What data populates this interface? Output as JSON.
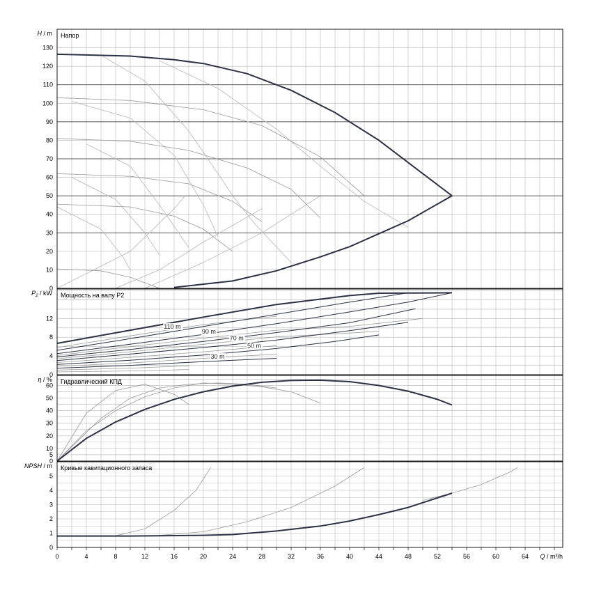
{
  "chart_data": {
    "type": "line",
    "x": {
      "label_symbol": "Q",
      "label_unit": "m³/h",
      "range": [
        0,
        68
      ],
      "ticks": [
        0,
        4,
        8,
        12,
        16,
        20,
        24,
        28,
        32,
        36,
        40,
        44,
        48,
        52,
        56,
        60,
        64
      ],
      "minor_step": 2
    },
    "panels": [
      {
        "id": "head",
        "ylabel_symbol": "H",
        "ylabel_unit": "m",
        "title": "Напор",
        "ylim": [
          0,
          140
        ],
        "ticks": [
          0,
          10,
          20,
          30,
          40,
          50,
          60,
          70,
          80,
          90,
          100,
          110,
          120,
          130
        ],
        "major_lines": [
          30,
          50,
          70,
          90,
          110
        ],
        "main_curve": [
          [
            0,
            126.5
          ],
          [
            10,
            125.5
          ],
          [
            16,
            123.5
          ],
          [
            20,
            121.5
          ],
          [
            26,
            116
          ],
          [
            32,
            107
          ],
          [
            38,
            95
          ],
          [
            44,
            80
          ],
          [
            50,
            62
          ],
          [
            54,
            50
          ]
        ],
        "envelope": [
          [
            16,
            0.5
          ],
          [
            24,
            4
          ],
          [
            30,
            9.5
          ],
          [
            36,
            17
          ],
          [
            40,
            22.5
          ],
          [
            44,
            29.5
          ],
          [
            48,
            36.5
          ],
          [
            54,
            50
          ]
        ],
        "speed_curves": [
          [
            [
              0,
              103
            ],
            [
              10,
              101.5
            ],
            [
              20,
              96.5
            ],
            [
              28,
              88
            ],
            [
              36,
              71
            ],
            [
              42,
              50
            ]
          ],
          [
            [
              0,
              81
            ],
            [
              10,
              79.5
            ],
            [
              18,
              74.5
            ],
            [
              26,
              65
            ],
            [
              32,
              53.5
            ],
            [
              36,
              38
            ]
          ],
          [
            [
              0,
              62
            ],
            [
              10,
              60.5
            ],
            [
              18,
              56.5
            ],
            [
              24,
              47
            ],
            [
              28,
              36
            ]
          ],
          [
            [
              0,
              45.5
            ],
            [
              10,
              44
            ],
            [
              16,
              39
            ],
            [
              20,
              32
            ],
            [
              24,
              20
            ]
          ],
          [
            [
              0,
              10.5
            ],
            [
              6,
              9.5
            ],
            [
              10,
              6
            ],
            [
              14,
              0
            ]
          ]
        ],
        "iso_curves": [
          [
            [
              0,
              0
            ],
            [
              10,
              20
            ],
            [
              16,
              43
            ],
            [
              17.5,
              50
            ]
          ],
          [
            [
              8,
              0
            ],
            [
              14,
              10
            ],
            [
              20,
              25
            ],
            [
              28,
              43
            ]
          ],
          [
            [
              12,
              0
            ],
            [
              20,
              14
            ],
            [
              28,
              30
            ],
            [
              36,
              50
            ]
          ],
          [
            [
              6,
              126
            ],
            [
              12,
              112
            ],
            [
              18,
              85
            ],
            [
              22,
              62
            ],
            [
              24,
              50
            ],
            [
              27,
              35
            ],
            [
              32,
              14
            ]
          ],
          [
            [
              14,
              123
            ],
            [
              22,
              108
            ],
            [
              30,
              86
            ],
            [
              36,
              66
            ],
            [
              42,
              47
            ],
            [
              48,
              33
            ]
          ],
          [
            [
              2,
              101
            ],
            [
              10,
              92
            ],
            [
              16,
              72
            ],
            [
              20,
              45
            ],
            [
              22,
              28
            ]
          ],
          [
            [
              4,
              78
            ],
            [
              10,
              66
            ],
            [
              14,
              45
            ],
            [
              18,
              22
            ]
          ],
          [
            [
              2,
              60
            ],
            [
              8,
              48
            ],
            [
              12,
              30
            ],
            [
              14,
              18
            ]
          ],
          [
            [
              0,
              44
            ],
            [
              6,
              32
            ],
            [
              9,
              17
            ],
            [
              10,
              10
            ]
          ]
        ]
      },
      {
        "id": "power",
        "ylabel_symbol": "P",
        "ylabel_sub": "2",
        "ylabel_unit": "kW",
        "title": "Мощность на валу P2",
        "ylim": [
          0,
          18.3
        ],
        "ticks": [
          0,
          4,
          8,
          12
        ],
        "main_curve": [
          [
            0,
            6.7
          ],
          [
            10,
            9.5
          ],
          [
            20,
            12.3
          ],
          [
            30,
            15
          ],
          [
            40,
            16.9
          ],
          [
            44,
            17.4
          ],
          [
            54,
            17.5
          ]
        ],
        "thin_curves": [
          [
            [
              0,
              5.2
            ],
            [
              10,
              7.7
            ],
            [
              20,
              10.3
            ],
            [
              30,
              12.9
            ],
            [
              40,
              15.5
            ],
            [
              48,
              17.5
            ]
          ],
          [
            [
              0,
              4.5
            ],
            [
              10,
              6.5
            ],
            [
              20,
              8.6
            ],
            [
              30,
              10.9
            ],
            [
              40,
              13.4
            ],
            [
              48,
              15.5
            ],
            [
              54,
              17.5
            ]
          ],
          [
            [
              0,
              3.8
            ],
            [
              10,
              5.4
            ],
            [
              20,
              7.1
            ],
            [
              30,
              9
            ],
            [
              40,
              11.1
            ],
            [
              49,
              14.1
            ]
          ],
          [
            [
              0,
              3
            ],
            [
              10,
              4.4
            ],
            [
              20,
              5.8
            ],
            [
              30,
              7.4
            ],
            [
              40,
              9.4
            ],
            [
              48,
              11.2
            ]
          ],
          [
            [
              0,
              2.2
            ],
            [
              10,
              3.1
            ],
            [
              20,
              4.2
            ],
            [
              30,
              5.6
            ],
            [
              38,
              7.1
            ],
            [
              44,
              8.5
            ]
          ],
          [
            [
              0,
              1.4
            ],
            [
              10,
              2
            ],
            [
              20,
              2.8
            ],
            [
              30,
              3.5
            ]
          ]
        ],
        "bg_curves": [
          [
            [
              0,
              5.8
            ],
            [
              10,
              8.3
            ],
            [
              20,
              10.7
            ],
            [
              30,
              12.5
            ]
          ],
          [
            [
              0,
              4.1
            ],
            [
              10,
              6
            ],
            [
              20,
              7.8
            ],
            [
              30,
              9.5
            ],
            [
              40,
              10.3
            ],
            [
              50,
              12
            ]
          ],
          [
            [
              0,
              3.4
            ],
            [
              10,
              4.9
            ],
            [
              20,
              6.5
            ],
            [
              30,
              8.1
            ],
            [
              40,
              8.9
            ],
            [
              44,
              9.3
            ]
          ],
          [
            [
              0,
              2.6
            ],
            [
              10,
              3.7
            ],
            [
              20,
              4.9
            ],
            [
              30,
              6.2
            ]
          ],
          [
            [
              0,
              1.8
            ],
            [
              10,
              2.5
            ],
            [
              20,
              3.5
            ],
            [
              30,
              4.4
            ]
          ],
          [
            [
              0,
              1
            ],
            [
              10,
              1.4
            ],
            [
              18,
              1.9
            ]
          ],
          [
            [
              0,
              0.6
            ],
            [
              10,
              0.8
            ],
            [
              18,
              1.1
            ]
          ]
        ],
        "labels": [
          {
            "x": 14.6,
            "y": 9.8,
            "text": "110 m"
          },
          {
            "x": 19.8,
            "y": 8.8,
            "text": "90 m"
          },
          {
            "x": 23.6,
            "y": 7.4,
            "text": "70 m"
          },
          {
            "x": 26,
            "y": 5.7,
            "text": "50 m"
          },
          {
            "x": 21,
            "y": 3.4,
            "text": "30 m"
          }
        ]
      },
      {
        "id": "efficiency",
        "ylabel_symbol": "η",
        "ylabel_unit": "%",
        "title": "Гидравлический КПД",
        "ylim": [
          0,
          68
        ],
        "ticks": [
          0,
          5,
          10,
          20,
          30,
          40,
          50,
          60
        ],
        "main_curve": [
          [
            0,
            0
          ],
          [
            4,
            18
          ],
          [
            8,
            31
          ],
          [
            12,
            41
          ],
          [
            16,
            49
          ],
          [
            20,
            55
          ],
          [
            24,
            59.5
          ],
          [
            28,
            62.5
          ],
          [
            32,
            64
          ],
          [
            36,
            64.2
          ],
          [
            40,
            63
          ],
          [
            44,
            60
          ],
          [
            48,
            55.5
          ],
          [
            52,
            49
          ],
          [
            54,
            44.5
          ]
        ],
        "bg_curves": [
          [
            [
              0,
              0
            ],
            [
              4,
              38
            ],
            [
              8,
              56
            ],
            [
              12,
              61
            ],
            [
              16,
              53
            ],
            [
              18,
              45
            ]
          ],
          [
            [
              0,
              0
            ],
            [
              4,
              24
            ],
            [
              8,
              40
            ],
            [
              12,
              51
            ],
            [
              16,
              58
            ],
            [
              20,
              62
            ],
            [
              24,
              61
            ],
            [
              28,
              59
            ],
            [
              32,
              55
            ],
            [
              36,
              46
            ]
          ],
          [
            [
              0,
              0
            ],
            [
              6,
              34
            ],
            [
              10,
              50
            ],
            [
              14,
              58
            ],
            [
              18,
              61
            ],
            [
              22,
              62
            ],
            [
              26,
              61
            ],
            [
              30,
              58
            ]
          ]
        ]
      },
      {
        "id": "npsh",
        "ylabel_symbol": "NPSH",
        "ylabel_unit": "m",
        "title": "Кривые кавитационного запаса",
        "ylim": [
          0,
          6
        ],
        "ticks": [
          0,
          1,
          2,
          3,
          4,
          5
        ],
        "main_curve": [
          [
            0,
            0.8
          ],
          [
            10,
            0.8
          ],
          [
            20,
            0.85
          ],
          [
            24,
            0.9
          ],
          [
            30,
            1.15
          ],
          [
            36,
            1.5
          ],
          [
            40,
            1.85
          ],
          [
            44,
            2.3
          ],
          [
            48,
            2.8
          ],
          [
            54,
            3.8
          ]
        ],
        "bg_curves": [
          [
            [
              0,
              0.8
            ],
            [
              8,
              0.82
            ],
            [
              12,
              1.3
            ],
            [
              16,
              2.6
            ],
            [
              19,
              4
            ],
            [
              21,
              5.6
            ]
          ],
          [
            [
              14,
              0.85
            ],
            [
              20,
              1.1
            ],
            [
              26,
              1.8
            ],
            [
              32,
              2.8
            ],
            [
              38,
              4.3
            ],
            [
              42,
              5.6
            ]
          ],
          [
            [
              50,
              3.3
            ],
            [
              54,
              3.8
            ],
            [
              58,
              4.4
            ],
            [
              62,
              5.3
            ],
            [
              63,
              5.6
            ]
          ]
        ]
      }
    ]
  }
}
